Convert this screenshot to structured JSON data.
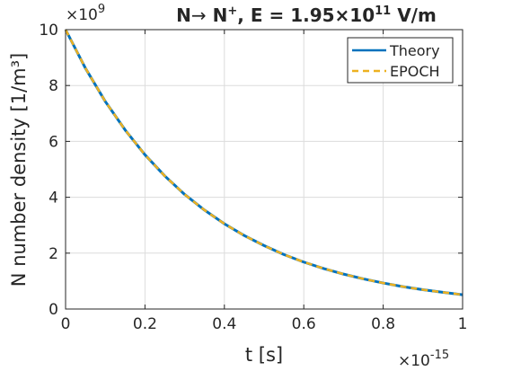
{
  "chart_data": {
    "type": "line",
    "title_parts": {
      "a": "N",
      "arrow": "→",
      "b": " N",
      "b_sup": "+",
      "c": ", E = 1.95×10",
      "c_sup": "11",
      "d": " V/m"
    },
    "xlabel": "t [s]",
    "ylabel": "N number density [1/m³]",
    "x_multiplier": {
      "base": "×10",
      "exp": "-15"
    },
    "y_multiplier": {
      "base": "×10",
      "exp": "9"
    },
    "xlim": [
      0,
      1
    ],
    "ylim": [
      0,
      10
    ],
    "x_ticks": [
      0,
      0.2,
      0.4,
      0.6,
      0.8,
      1
    ],
    "x_tick_labels": [
      "0",
      "0.2",
      "0.4",
      "0.6",
      "0.8",
      "1"
    ],
    "y_ticks": [
      0,
      2,
      4,
      6,
      8,
      10
    ],
    "y_tick_labels": [
      "0",
      "2",
      "4",
      "6",
      "8",
      "10"
    ],
    "grid": true,
    "legend_position": "top-right",
    "x": [
      0,
      0.05,
      0.1,
      0.15,
      0.2,
      0.25,
      0.3,
      0.35,
      0.4,
      0.45,
      0.5,
      0.55,
      0.6,
      0.65,
      0.7,
      0.75,
      0.8,
      0.85,
      0.9,
      0.95,
      1.0
    ],
    "series": [
      {
        "name": "Theory",
        "color": "#0072BD",
        "style": "solid",
        "values": [
          10.0,
          8.62,
          7.43,
          6.41,
          5.52,
          4.76,
          4.1,
          3.54,
          3.05,
          2.63,
          2.27,
          1.95,
          1.68,
          1.45,
          1.25,
          1.08,
          0.93,
          0.8,
          0.69,
          0.6,
          0.51
        ]
      },
      {
        "name": "EPOCH",
        "color": "#EDB120",
        "style": "dashed",
        "values": [
          10.0,
          8.62,
          7.43,
          6.41,
          5.52,
          4.76,
          4.1,
          3.54,
          3.05,
          2.63,
          2.27,
          1.95,
          1.68,
          1.45,
          1.25,
          1.08,
          0.93,
          0.8,
          0.69,
          0.6,
          0.51
        ]
      }
    ]
  }
}
